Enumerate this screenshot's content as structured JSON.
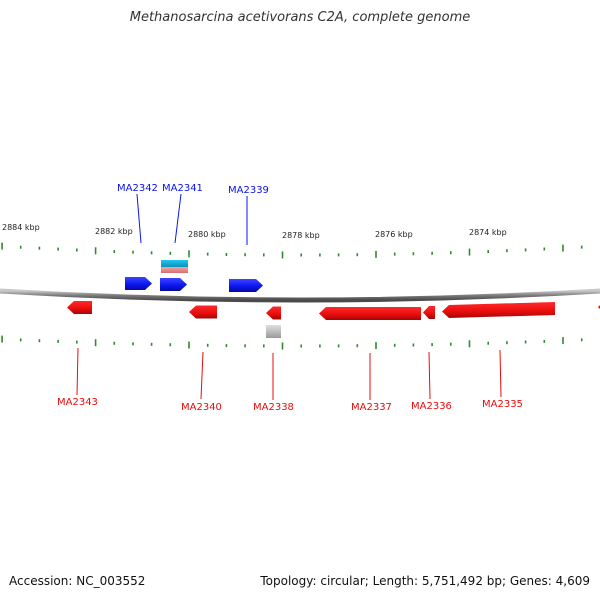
{
  "title": "Methanosarcina acetivorans C2A, complete genome",
  "accession_text": "Accession: NC_003552",
  "summary_text": "Topology: circular; Length: 5,751,492 bp; Genes: 4,609",
  "colors": {
    "forward": "#0a14ee",
    "reverse": "#e80c0c",
    "tick": "#2e8b2e",
    "backbone": "#8a8a8a",
    "cyan_feature": "#19b7dd",
    "pink_feature": "#e88e8e",
    "gray_feature": "#b4b4b4",
    "axis_label": "#222222"
  },
  "axis_labels": [
    "2884 kbp",
    "2882 kbp",
    "2880 kbp",
    "2878 kbp",
    "2876 kbp",
    "2874 kbp"
  ],
  "forward_labels": [
    "MA2342",
    "MA2341",
    "MA2339"
  ],
  "reverse_labels": [
    "MA2343",
    "MA2340",
    "MA2338",
    "MA2337",
    "MA2336",
    "MA2335"
  ]
}
